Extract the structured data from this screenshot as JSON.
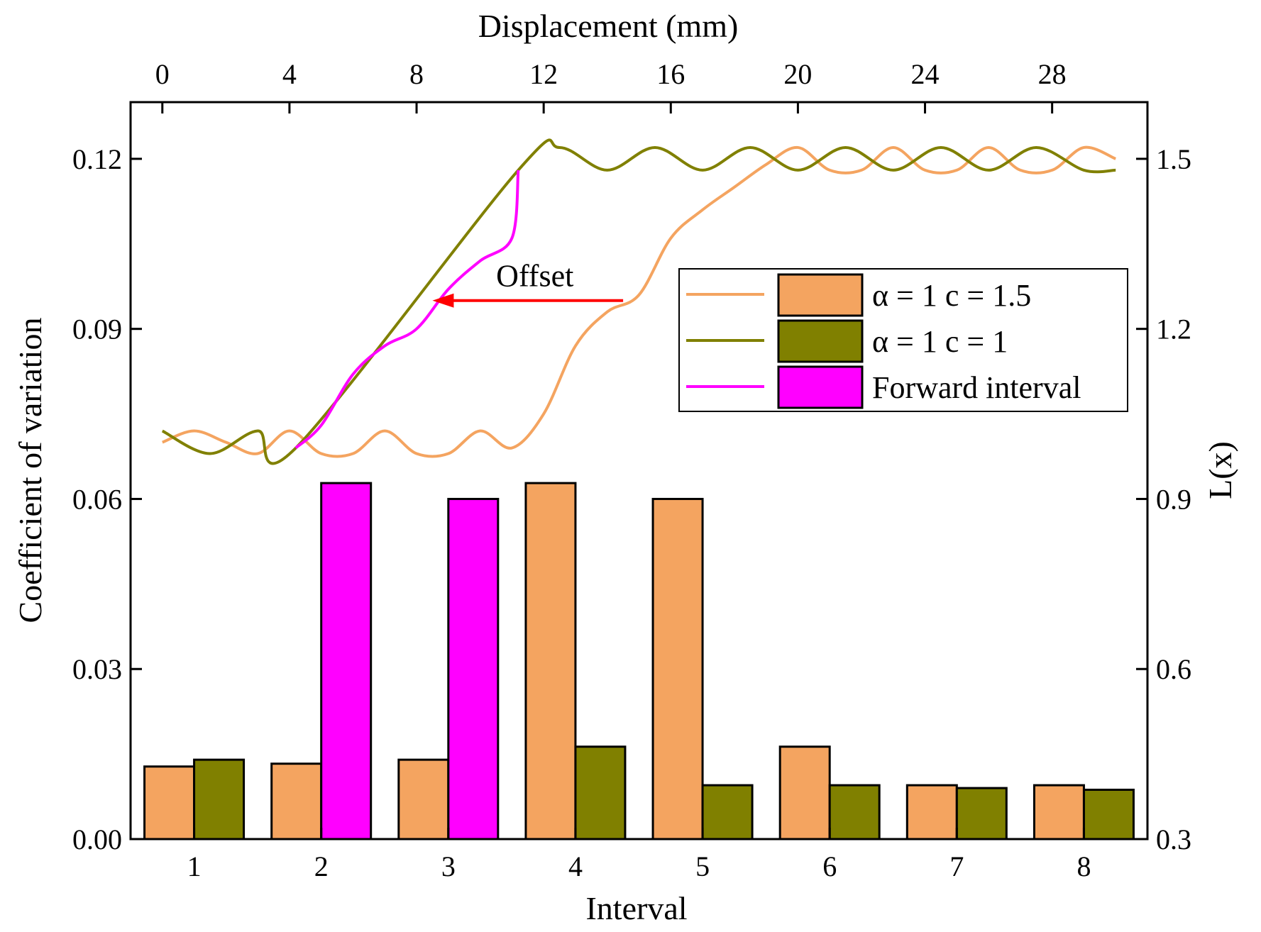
{
  "chart_data": {
    "type": "bar",
    "xlabel": "Interval",
    "ylabel": "Coefficient of variation",
    "x2label": "Displacement (mm)",
    "y2label": "L(x)",
    "categories": [
      "1",
      "2",
      "3",
      "4",
      "5",
      "6",
      "7",
      "8"
    ],
    "ylim": [
      0,
      0.13
    ],
    "yticks": [
      0.0,
      0.03,
      0.06,
      0.09,
      0.12
    ],
    "ytick_labels": [
      "0.00",
      "0.03",
      "0.06",
      "0.09",
      "0.12"
    ],
    "y2lim": [
      0.3,
      1.6
    ],
    "y2ticks": [
      0.3,
      0.6,
      0.9,
      1.2,
      1.5
    ],
    "y2tick_labels": [
      "0.3",
      "0.6",
      "0.9",
      "1.2",
      "1.5"
    ],
    "x2lim": [
      -1,
      31
    ],
    "x2ticks": [
      0,
      4,
      8,
      12,
      16,
      20,
      24,
      28
    ],
    "x2tick_labels": [
      "0",
      "4",
      "8",
      "12",
      "16",
      "20",
      "24",
      "28"
    ],
    "series": [
      {
        "name": "α = 1 c = 1.5",
        "color": "#F4A460",
        "values": [
          0.0128,
          0.0133,
          0.014,
          0.0628,
          0.06,
          0.0163,
          0.0095,
          0.0095
        ]
      },
      {
        "name": "α = 1 c = 1",
        "color": "#808000",
        "values": [
          0.014,
          null,
          null,
          0.0163,
          0.0095,
          0.0095,
          0.009,
          0.0087
        ]
      },
      {
        "name": "Forward interval",
        "color": "#FF00FF",
        "values": [
          null,
          0.0628,
          0.06,
          null,
          null,
          null,
          null,
          null
        ]
      }
    ],
    "lines": [
      {
        "name": "α = 1 c = 1.5",
        "color": "#F4A460",
        "axis": "secondary",
        "x_range": [
          0,
          30
        ],
        "points": [
          [
            0,
            1.0
          ],
          [
            1,
            1.02
          ],
          [
            2,
            1.0
          ],
          [
            3,
            0.98
          ],
          [
            4,
            1.02
          ],
          [
            5,
            0.98
          ],
          [
            6,
            0.98
          ],
          [
            7,
            1.02
          ],
          [
            8,
            0.98
          ],
          [
            9,
            0.98
          ],
          [
            10,
            1.02
          ],
          [
            11,
            0.99
          ],
          [
            12,
            1.05
          ],
          [
            13,
            1.17
          ],
          [
            14,
            1.23
          ],
          [
            15,
            1.26
          ],
          [
            16,
            1.36
          ],
          [
            17,
            1.41
          ],
          [
            18,
            1.45
          ],
          [
            19,
            1.49
          ],
          [
            20,
            1.52
          ],
          [
            21,
            1.48
          ],
          [
            22,
            1.48
          ],
          [
            23,
            1.52
          ],
          [
            24,
            1.48
          ],
          [
            25,
            1.48
          ],
          [
            26,
            1.52
          ],
          [
            27,
            1.48
          ],
          [
            28,
            1.48
          ],
          [
            29,
            1.52
          ],
          [
            30,
            1.5
          ]
        ]
      },
      {
        "name": "α = 1 c = 1",
        "color": "#808000",
        "axis": "secondary",
        "x_range": [
          0,
          30
        ],
        "points": [
          [
            0,
            1.02
          ],
          [
            1.5,
            0.98
          ],
          [
            3,
            1.02
          ],
          [
            4.2,
            0.99
          ],
          [
            11.2,
            1.48
          ],
          [
            12.5,
            1.52
          ],
          [
            14,
            1.48
          ],
          [
            15.5,
            1.52
          ],
          [
            17,
            1.48
          ],
          [
            18.5,
            1.52
          ],
          [
            20,
            1.48
          ],
          [
            21.5,
            1.52
          ],
          [
            23,
            1.48
          ],
          [
            24.5,
            1.52
          ],
          [
            26,
            1.48
          ],
          [
            27.5,
            1.52
          ],
          [
            29,
            1.48
          ],
          [
            30,
            1.48
          ]
        ]
      },
      {
        "name": "Forward interval",
        "color": "#FF00FF",
        "axis": "secondary",
        "x_range": [
          4.2,
          11.2
        ],
        "points": [
          [
            4.2,
            0.99
          ],
          [
            5,
            1.03
          ],
          [
            6,
            1.12
          ],
          [
            7,
            1.17
          ],
          [
            8,
            1.2
          ],
          [
            9,
            1.27
          ],
          [
            10,
            1.32
          ],
          [
            11,
            1.36
          ],
          [
            11.2,
            1.48
          ]
        ]
      }
    ],
    "annotations": [
      {
        "text": "Offset",
        "arrow_from": [
          14.5,
          1.25
        ],
        "arrow_to": [
          8.5,
          1.25
        ],
        "arrow_color": "#FF0000"
      }
    ],
    "legend_position": "upper-right",
    "grid": false
  }
}
